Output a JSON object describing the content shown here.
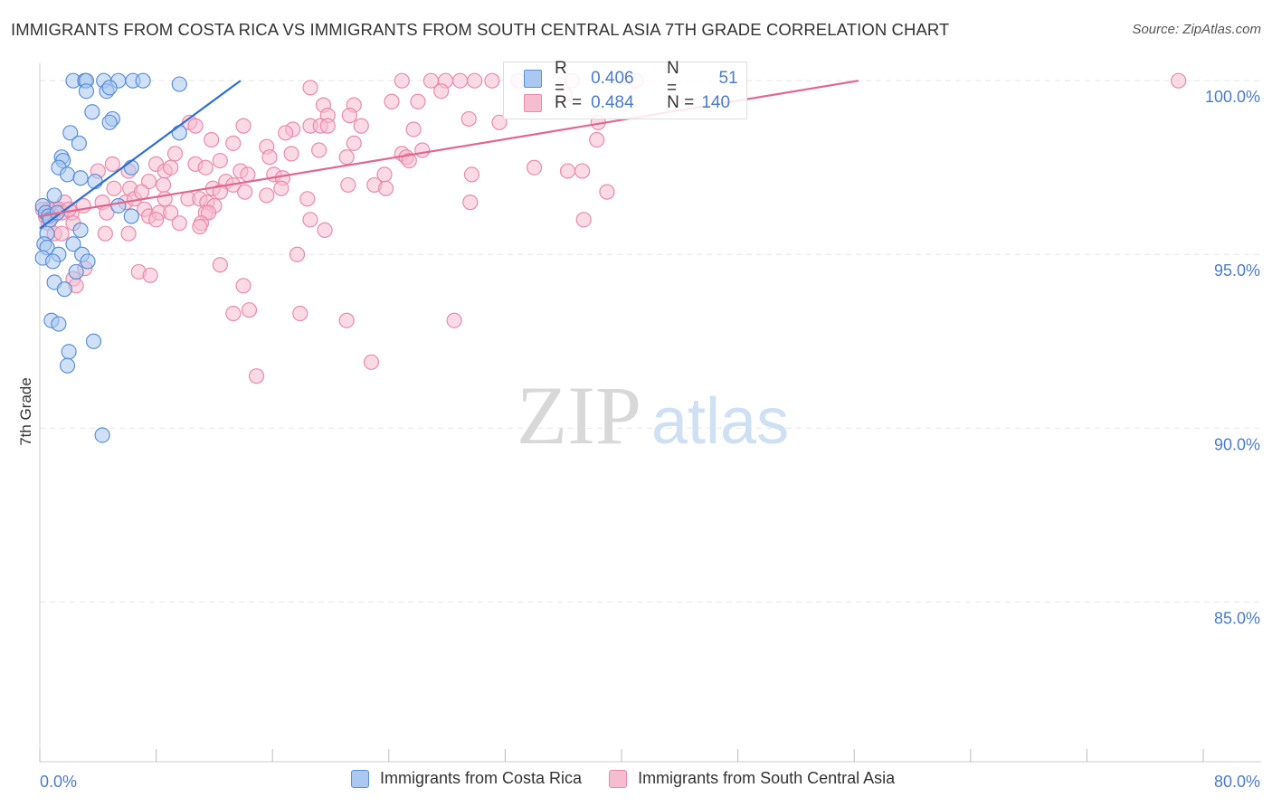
{
  "title": "IMMIGRANTS FROM COSTA RICA VS IMMIGRANTS FROM SOUTH CENTRAL ASIA 7TH GRADE CORRELATION CHART",
  "source": "Source: ZipAtlas.com",
  "watermark": {
    "zip": "ZIP",
    "atlas": "atlas"
  },
  "stats": {
    "r_label": "R =",
    "n_label": "N =",
    "rows": [
      {
        "r": "0.406",
        "n": "51"
      },
      {
        "r": "0.484",
        "n": "140"
      }
    ]
  },
  "legend": [
    {
      "label": "Immigrants from Costa Rica"
    },
    {
      "label": "Immigrants from South Central Asia"
    }
  ],
  "colors": {
    "blue_fill": "#aac8f0",
    "blue_stroke": "#5b8fd6",
    "blue_line": "#2f6fcf",
    "pink_fill": "#f6bcd0",
    "pink_stroke": "#e98aab",
    "pink_line": "#e0678f",
    "tick_text": "#4a7cc9",
    "grid": "#e6e6e6"
  },
  "chart_data": {
    "type": "scatter",
    "xlabel": "",
    "ylabel": "7th Grade",
    "xlim": [
      0,
      80
    ],
    "ylim": [
      80.4,
      100.5
    ],
    "x_tick_labels": [
      "0.0%",
      "80.0%"
    ],
    "x_minor_ticks": [
      0,
      8,
      16,
      24,
      32,
      40,
      48,
      56,
      64,
      72,
      80
    ],
    "y_ticks": [
      85,
      90,
      95,
      100
    ],
    "y_tick_labels": [
      "85.0%",
      "90.0%",
      "95.0%",
      "100.0%"
    ],
    "grid": "horizontal dashed",
    "legend_position": "bottom-center",
    "series": [
      {
        "name": "Immigrants from Costa Rica",
        "color": "#aac8f0",
        "trend": [
          [
            0,
            95.75
          ],
          [
            13.8,
            100.0
          ]
        ],
        "points": [
          [
            2.3,
            100.0
          ],
          [
            3.1,
            100.0
          ],
          [
            3.2,
            100.0
          ],
          [
            4.4,
            100.0
          ],
          [
            5.4,
            100.0
          ],
          [
            6.4,
            100.0
          ],
          [
            7.1,
            100.0
          ],
          [
            9.6,
            99.9
          ],
          [
            3.2,
            99.7
          ],
          [
            4.6,
            99.7
          ],
          [
            4.8,
            99.8
          ],
          [
            3.6,
            99.1
          ],
          [
            5.0,
            98.9
          ],
          [
            4.8,
            98.8
          ],
          [
            2.1,
            98.5
          ],
          [
            2.7,
            98.2
          ],
          [
            1.5,
            97.8
          ],
          [
            1.6,
            97.7
          ],
          [
            1.3,
            97.5
          ],
          [
            1.9,
            97.3
          ],
          [
            2.8,
            97.2
          ],
          [
            3.8,
            97.1
          ],
          [
            6.3,
            97.5
          ],
          [
            9.6,
            98.5
          ],
          [
            1.0,
            96.7
          ],
          [
            0.2,
            96.4
          ],
          [
            0.4,
            96.2
          ],
          [
            0.6,
            96.1
          ],
          [
            0.7,
            96.0
          ],
          [
            1.2,
            96.2
          ],
          [
            5.4,
            96.4
          ],
          [
            6.3,
            96.1
          ],
          [
            0.5,
            95.6
          ],
          [
            2.8,
            95.7
          ],
          [
            0.3,
            95.3
          ],
          [
            0.5,
            95.2
          ],
          [
            2.3,
            95.3
          ],
          [
            0.2,
            94.9
          ],
          [
            1.3,
            95.0
          ],
          [
            0.9,
            94.8
          ],
          [
            2.9,
            95.0
          ],
          [
            3.3,
            94.8
          ],
          [
            2.5,
            94.5
          ],
          [
            1.0,
            94.2
          ],
          [
            1.7,
            94.0
          ],
          [
            0.8,
            93.1
          ],
          [
            1.3,
            93.0
          ],
          [
            2.0,
            92.2
          ],
          [
            3.7,
            92.5
          ],
          [
            1.9,
            91.8
          ],
          [
            4.3,
            89.8
          ]
        ]
      },
      {
        "name": "Immigrants from South Central Asia",
        "color": "#f6bcd0",
        "trend": [
          [
            0,
            96.1
          ],
          [
            56.3,
            100.0
          ]
        ],
        "points": [
          [
            18.6,
            99.8
          ],
          [
            24.9,
            100.0
          ],
          [
            26.9,
            100.0
          ],
          [
            27.9,
            100.0
          ],
          [
            28.9,
            100.0
          ],
          [
            29.9,
            100.0
          ],
          [
            31.1,
            100.0
          ],
          [
            32.9,
            100.0
          ],
          [
            36.6,
            100.0
          ],
          [
            41.0,
            100.0
          ],
          [
            78.3,
            100.0
          ],
          [
            27.6,
            99.7
          ],
          [
            36.1,
            99.6
          ],
          [
            24.2,
            99.4
          ],
          [
            26.0,
            99.4
          ],
          [
            19.5,
            99.3
          ],
          [
            21.6,
            99.3
          ],
          [
            21.3,
            99.0
          ],
          [
            19.8,
            99.0
          ],
          [
            29.5,
            98.9
          ],
          [
            31.6,
            98.8
          ],
          [
            38.4,
            98.8
          ],
          [
            10.3,
            98.8
          ],
          [
            10.7,
            98.7
          ],
          [
            14.0,
            98.7
          ],
          [
            17.4,
            98.6
          ],
          [
            18.6,
            98.7
          ],
          [
            19.3,
            98.7
          ],
          [
            19.8,
            98.7
          ],
          [
            22.1,
            98.7
          ],
          [
            25.7,
            98.6
          ],
          [
            16.9,
            98.5
          ],
          [
            11.8,
            98.3
          ],
          [
            13.3,
            98.2
          ],
          [
            15.6,
            98.1
          ],
          [
            21.6,
            98.2
          ],
          [
            38.3,
            98.3
          ],
          [
            9.3,
            97.9
          ],
          [
            17.3,
            97.9
          ],
          [
            19.2,
            98.0
          ],
          [
            24.9,
            97.9
          ],
          [
            25.2,
            97.8
          ],
          [
            25.4,
            97.7
          ],
          [
            15.8,
            97.8
          ],
          [
            21.1,
            97.8
          ],
          [
            12.4,
            97.7
          ],
          [
            10.7,
            97.6
          ],
          [
            8.0,
            97.6
          ],
          [
            11.4,
            97.5
          ],
          [
            13.8,
            97.4
          ],
          [
            36.3,
            97.4
          ],
          [
            37.3,
            97.4
          ],
          [
            4.0,
            97.4
          ],
          [
            6.1,
            97.4
          ],
          [
            8.6,
            97.4
          ],
          [
            9.0,
            97.5
          ],
          [
            14.3,
            97.3
          ],
          [
            16.1,
            97.3
          ],
          [
            16.7,
            97.2
          ],
          [
            23.7,
            97.3
          ],
          [
            29.7,
            97.3
          ],
          [
            12.8,
            97.1
          ],
          [
            13.3,
            97.0
          ],
          [
            21.2,
            97.0
          ],
          [
            23.0,
            97.0
          ],
          [
            7.5,
            97.1
          ],
          [
            5.1,
            96.9
          ],
          [
            6.2,
            96.9
          ],
          [
            8.5,
            97.0
          ],
          [
            23.8,
            96.9
          ],
          [
            11.9,
            96.9
          ],
          [
            12.4,
            96.8
          ],
          [
            14.1,
            96.8
          ],
          [
            15.6,
            96.7
          ],
          [
            16.6,
            96.9
          ],
          [
            18.4,
            96.6
          ],
          [
            39.0,
            96.8
          ],
          [
            3.0,
            96.4
          ],
          [
            1.7,
            96.5
          ],
          [
            2.2,
            96.2
          ],
          [
            4.3,
            96.5
          ],
          [
            5.9,
            96.5
          ],
          [
            6.5,
            96.6
          ],
          [
            7.0,
            96.8
          ],
          [
            8.6,
            96.6
          ],
          [
            10.2,
            96.6
          ],
          [
            11.0,
            96.6
          ],
          [
            11.5,
            96.5
          ],
          [
            12.0,
            96.4
          ],
          [
            29.6,
            96.5
          ],
          [
            1.1,
            96.3
          ],
          [
            1.3,
            96.3
          ],
          [
            0.6,
            96.3
          ],
          [
            0.2,
            96.3
          ],
          [
            0.4,
            96.1
          ],
          [
            0.9,
            96.1
          ],
          [
            1.5,
            96.2
          ],
          [
            2.0,
            96.3
          ],
          [
            4.6,
            96.2
          ],
          [
            7.2,
            96.3
          ],
          [
            7.5,
            96.1
          ],
          [
            8.2,
            96.2
          ],
          [
            9.0,
            96.2
          ],
          [
            11.4,
            96.2
          ],
          [
            11.6,
            96.2
          ],
          [
            11.1,
            95.9
          ],
          [
            8.0,
            96.0
          ],
          [
            9.6,
            95.9
          ],
          [
            11.0,
            95.8
          ],
          [
            18.6,
            96.0
          ],
          [
            37.4,
            96.0
          ],
          [
            0.6,
            95.9
          ],
          [
            2.3,
            95.9
          ],
          [
            1.0,
            95.6
          ],
          [
            1.5,
            95.6
          ],
          [
            4.5,
            95.6
          ],
          [
            6.1,
            95.6
          ],
          [
            19.6,
            95.7
          ],
          [
            17.7,
            95.0
          ],
          [
            12.4,
            94.7
          ],
          [
            3.1,
            94.6
          ],
          [
            2.3,
            94.3
          ],
          [
            6.8,
            94.5
          ],
          [
            14.0,
            94.1
          ],
          [
            13.3,
            93.3
          ],
          [
            14.4,
            93.4
          ],
          [
            17.9,
            93.3
          ],
          [
            21.1,
            93.1
          ],
          [
            28.5,
            93.1
          ],
          [
            22.8,
            91.9
          ],
          [
            14.9,
            91.5
          ],
          [
            7.6,
            94.4
          ],
          [
            2.5,
            94.1
          ],
          [
            5.0,
            97.6
          ],
          [
            26.3,
            98.0
          ],
          [
            34.0,
            97.5
          ]
        ]
      }
    ]
  }
}
